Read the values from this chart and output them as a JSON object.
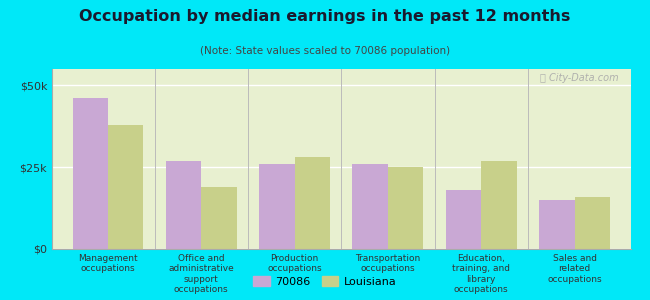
{
  "title": "Occupation by median earnings in the past 12 months",
  "subtitle": "(Note: State values scaled to 70086 population)",
  "categories": [
    "Management\noccupations",
    "Office and\nadministrative\nsupport\noccupations",
    "Production\noccupations",
    "Transportation\noccupations",
    "Education,\ntraining, and\nlibrary\noccupations",
    "Sales and\nrelated\noccupations"
  ],
  "values_70086": [
    46000,
    27000,
    26000,
    26000,
    18000,
    15000
  ],
  "values_louisiana": [
    38000,
    19000,
    28000,
    25000,
    27000,
    16000
  ],
  "color_70086": "#c9a8d4",
  "color_louisiana": "#c8d08a",
  "background_outer": "#00e8f8",
  "background_inner": "#e8f0d0",
  "yticks": [
    0,
    25000,
    50000
  ],
  "ytick_labels": [
    "$0",
    "$25k",
    "$50k"
  ],
  "ylim": [
    0,
    55000
  ],
  "legend_labels": [
    "70086",
    "Louisiana"
  ],
  "watermark": "ⓘ City-Data.com"
}
